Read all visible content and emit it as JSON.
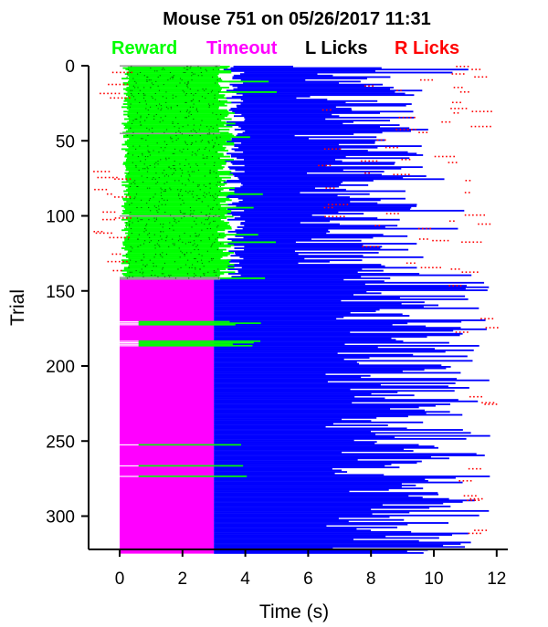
{
  "chart_data": {
    "type": "raster",
    "title": "Mouse 751 on 05/26/2017 11:31",
    "legend": [
      {
        "label": "Reward",
        "color": "#00ff00"
      },
      {
        "label": "Timeout",
        "color": "#ff00ff"
      },
      {
        "label": "L Licks",
        "color": "#000000"
      },
      {
        "label": "R Licks",
        "color": "#ff0000"
      }
    ],
    "xlabel": "Time (s)",
    "ylabel": "Trial",
    "xlim": [
      -1,
      12
    ],
    "ylim": [
      325,
      0
    ],
    "xticks": [
      0,
      2,
      4,
      6,
      8,
      10,
      12
    ],
    "yticks": [
      0,
      50,
      100,
      150,
      200,
      250,
      300
    ],
    "n_trials": 325,
    "stimulus_color": "#0000ff",
    "gray_marker_color": "#999999",
    "segments": [
      {
        "name": "reward-epoch",
        "trials": [
          0,
          142
        ],
        "outcome": "Reward",
        "stimulus_end_s": [
          5.5,
          9.5
        ],
        "left_lick_end_s": [
          4.6,
          11.9
        ]
      },
      {
        "name": "timeout-epoch",
        "trials": [
          142,
          325
        ],
        "outcome": "Timeout",
        "outcome_window_s": [
          0,
          3
        ],
        "stimulus_end_s": [
          6.5,
          11.8
        ]
      }
    ],
    "blue_red_lick_trials_approx": [
      0,
      140
    ],
    "reward_trials_in_timeout_epoch": [
      170,
      171,
      172,
      183,
      184,
      185,
      186,
      252,
      266,
      273
    ]
  }
}
